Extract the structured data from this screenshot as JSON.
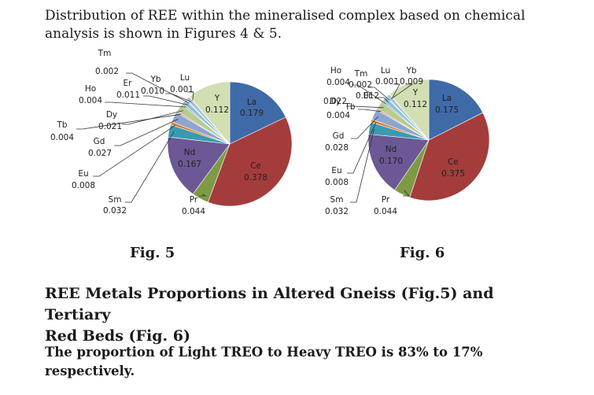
{
  "intro": {
    "line1": "Distribution of REE within the mineralised complex based on chemical",
    "line2": "analysis is shown in Figures 4 & 5."
  },
  "colors": {
    "La": "#3f6aa8",
    "Ce": "#a53c3c",
    "Pr": "#7e9a45",
    "Nd": "#6b5894",
    "Sm": "#3b9ab0",
    "Eu": "#d87f36",
    "Gd": "#8ea5cf",
    "Tb": "#cf8d8d",
    "Dy": "#b7cc8f",
    "Ho": "#a799c2",
    "Er": "#83c4d3",
    "Tm": "#f2b97a",
    "Yb": "#a8bedd",
    "Lu": "#e3b3b3",
    "Y": "#d2dfb3"
  },
  "figures": [
    {
      "caption": "Fig. 5",
      "chart_data": {
        "type": "pie",
        "slices": [
          {
            "name": "La",
            "value": 0.179,
            "label": "0.179"
          },
          {
            "name": "Ce",
            "value": 0.378,
            "label": "0.378"
          },
          {
            "name": "Pr",
            "value": 0.044,
            "label": "0.044"
          },
          {
            "name": "Nd",
            "value": 0.167,
            "label": "0.167"
          },
          {
            "name": "Sm",
            "value": 0.032,
            "label": "0.032"
          },
          {
            "name": "Eu",
            "value": 0.008,
            "label": "0.008"
          },
          {
            "name": "Gd",
            "value": 0.027,
            "label": "0.027"
          },
          {
            "name": "Tb",
            "value": 0.004,
            "label": "0.004"
          },
          {
            "name": "Dy",
            "value": 0.021,
            "label": "0.021"
          },
          {
            "name": "Ho",
            "value": 0.004,
            "label": "0.004"
          },
          {
            "name": "Er",
            "value": 0.011,
            "label": "0.011"
          },
          {
            "name": "Tm",
            "value": 0.002,
            "label": "0.002"
          },
          {
            "name": "Yb",
            "value": 0.01,
            "label": "0.010"
          },
          {
            "name": "Lu",
            "value": 0.001,
            "label": "0.001"
          },
          {
            "name": "Y",
            "value": 0.112,
            "label": "0.112"
          }
        ]
      }
    },
    {
      "caption": "Fig. 6",
      "chart_data": {
        "type": "pie",
        "slices": [
          {
            "name": "La",
            "value": 0.175,
            "label": "0.175"
          },
          {
            "name": "Ce",
            "value": 0.375,
            "label": "0.375"
          },
          {
            "name": "Pr",
            "value": 0.044,
            "label": "0.044"
          },
          {
            "name": "Nd",
            "value": 0.17,
            "label": "0.170"
          },
          {
            "name": "Sm",
            "value": 0.032,
            "label": "0.032"
          },
          {
            "name": "Eu",
            "value": 0.008,
            "label": "0.008"
          },
          {
            "name": "Gd",
            "value": 0.028,
            "label": "0.028"
          },
          {
            "name": "Tb",
            "value": 0.004,
            "label": "0.004"
          },
          {
            "name": "Dy",
            "value": 0.022,
            "label": "0.022"
          },
          {
            "name": "Ho",
            "value": 0.004,
            "label": "0.004"
          },
          {
            "name": "Er",
            "value": 0.012,
            "label": "0.012"
          },
          {
            "name": "Tm",
            "value": 0.002,
            "label": "0.002"
          },
          {
            "name": "Yb",
            "value": 0.009,
            "label": "0.009"
          },
          {
            "name": "Lu",
            "value": 0.001,
            "label": "0.001"
          },
          {
            "name": "Y",
            "value": 0.112,
            "label": "0.112"
          }
        ]
      }
    }
  ],
  "heading": {
    "line1": "REE Metals Proportions in Altered Gneiss (Fig.5) and Tertiary",
    "line2": "Red Beds (Fig. 6)"
  },
  "note": {
    "line1": "The proportion of Light TREO to Heavy TREO is 83% to 17%",
    "line2": "respectively."
  }
}
